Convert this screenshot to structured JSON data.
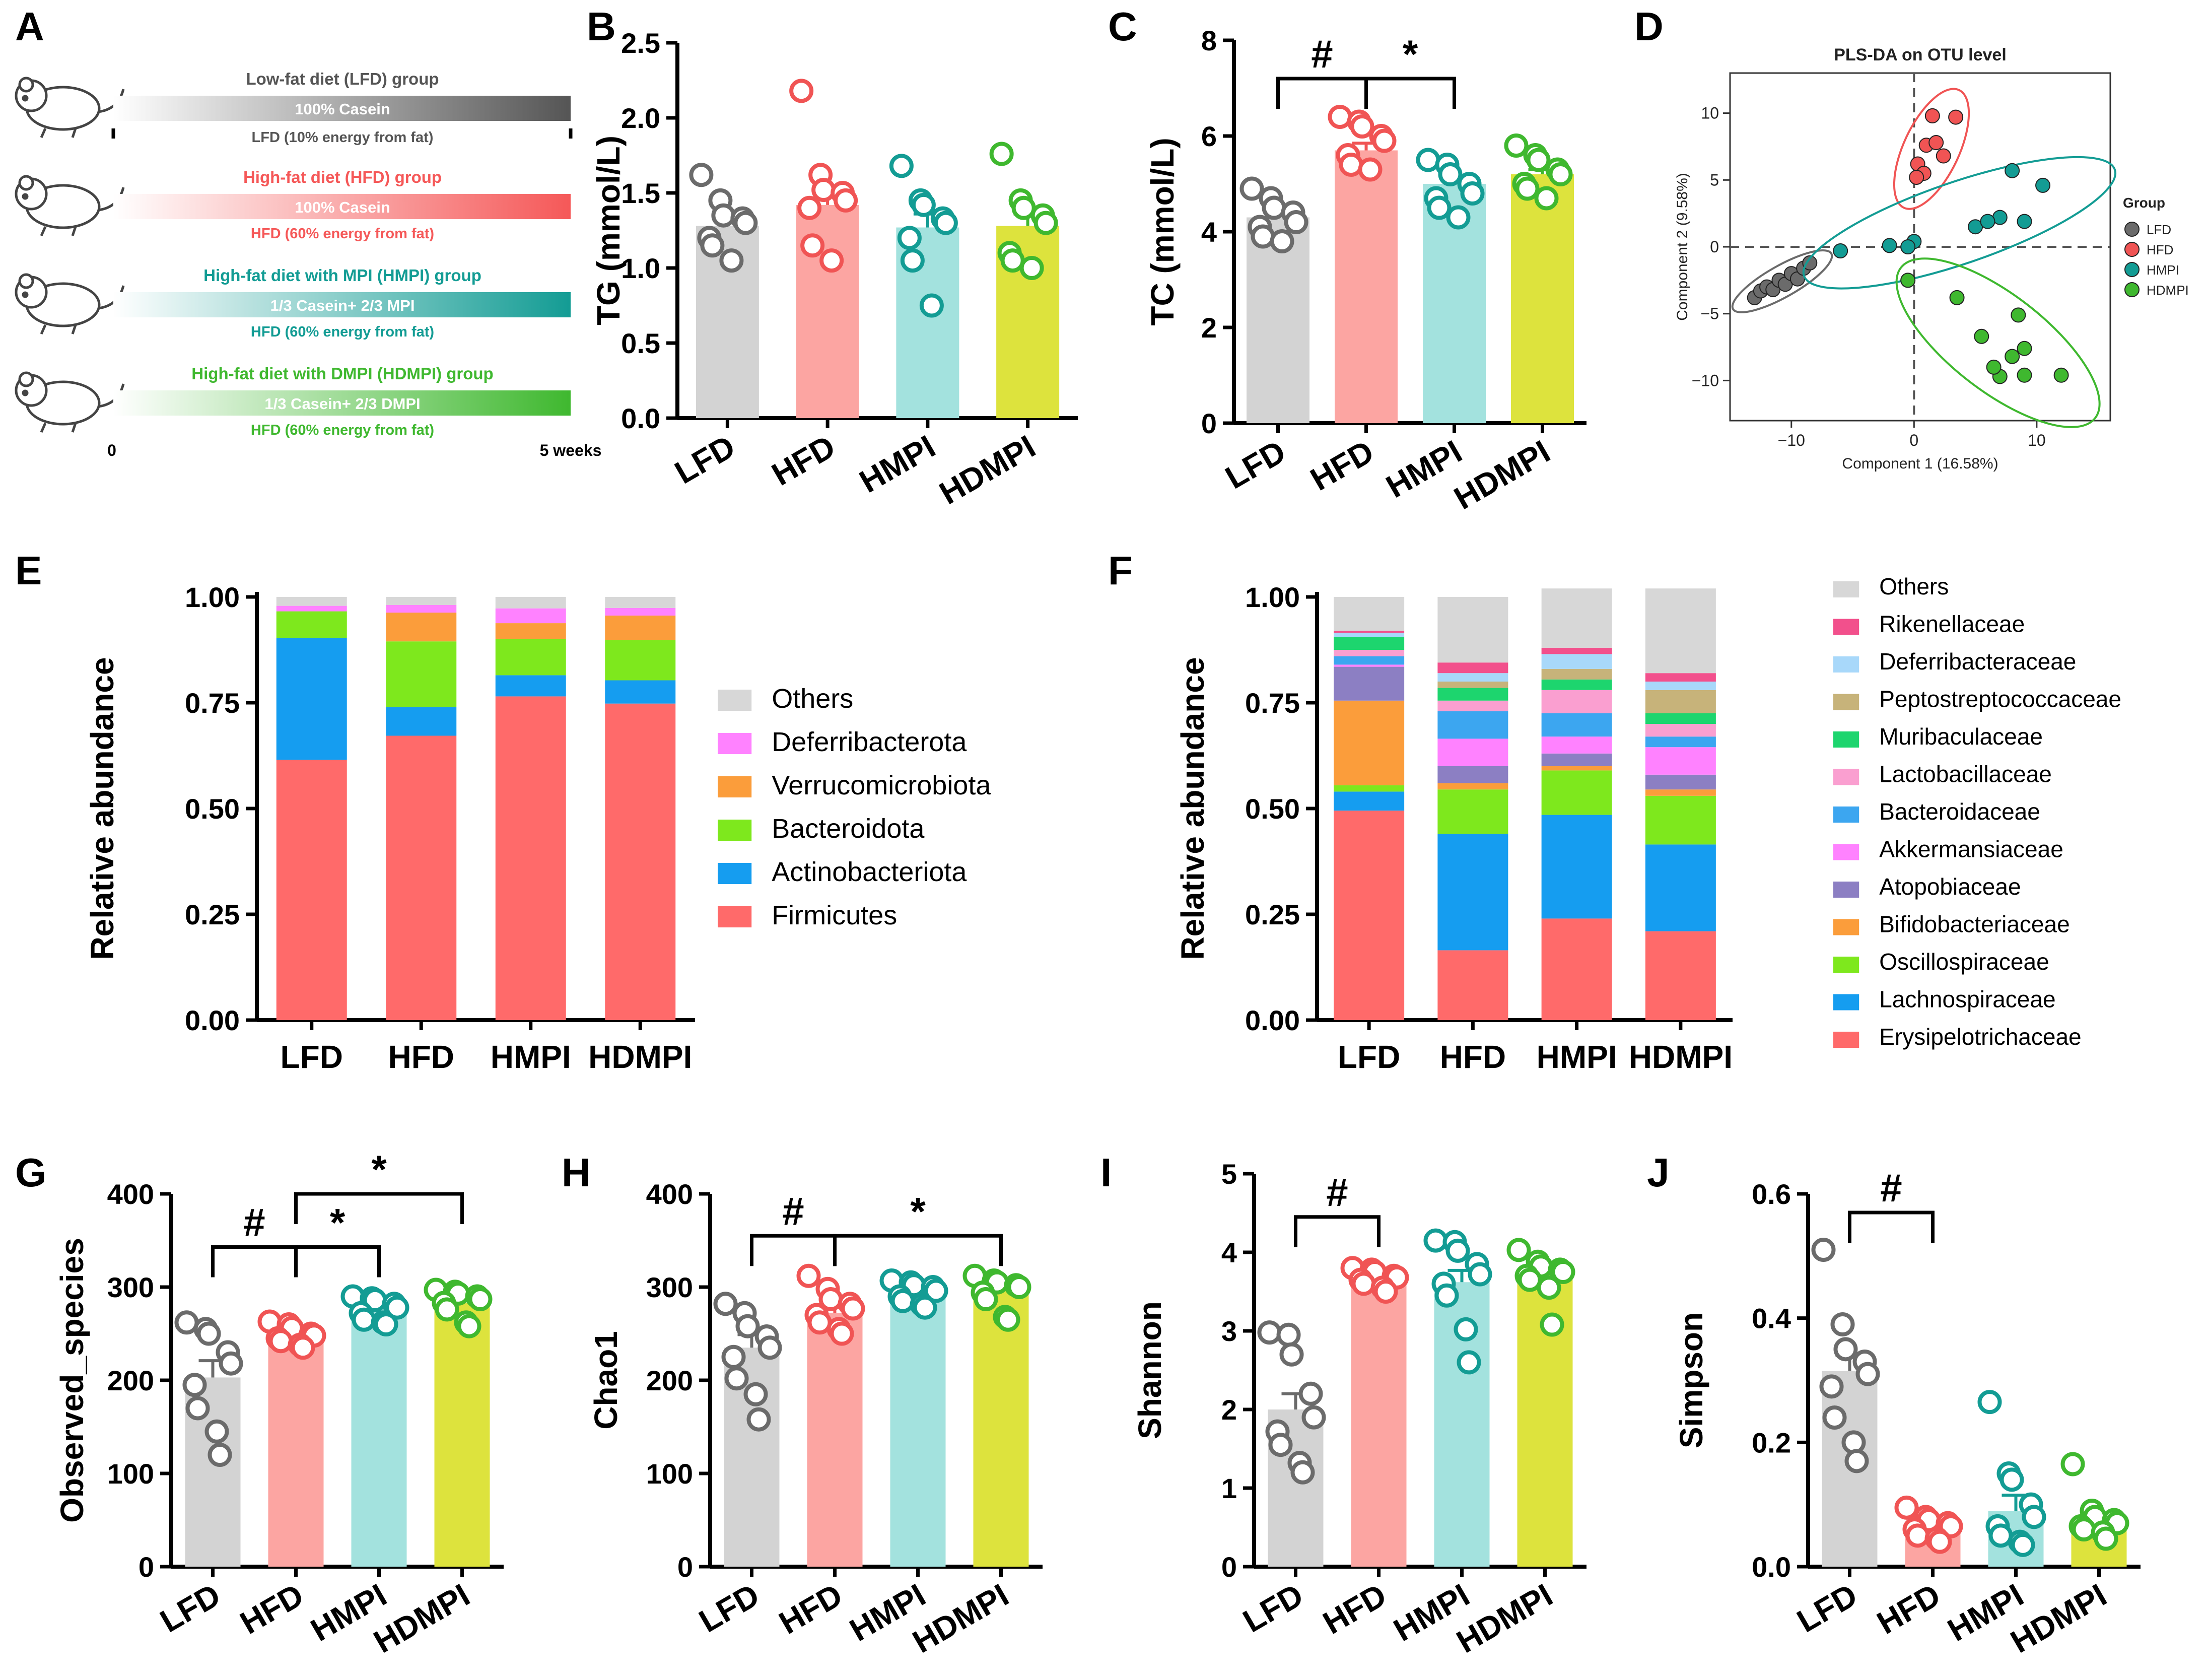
{
  "panel_letters": [
    "A",
    "B",
    "C",
    "D",
    "E",
    "F",
    "G",
    "H",
    "I",
    "J"
  ],
  "colors": {
    "LFD": "#d3d3d3",
    "HFD": "#fca5a2",
    "HMPI": "#a3e2de",
    "HDMPI": "#dde33d"
  },
  "dot_colors": {
    "LFD": "#6b6b6b",
    "HFD": "#f05454",
    "HMPI": "#139c94",
    "HDMPI": "#3fb82f"
  },
  "panelA": {
    "groups": [
      {
        "title": "Low-fat diet (LFD)  group",
        "bar": "100% Casein",
        "note": "LFD (10% energy from fat)",
        "color": "#555555"
      },
      {
        "title": "High-fat diet (HFD) group",
        "bar": "100% Casein",
        "note": "HFD (60% energy from fat)",
        "color": "#f55858"
      },
      {
        "title": "High-fat diet with MPI (HMPI) group",
        "bar": "1/3 Casein+ 2/3 MPI",
        "note": "HFD (60% energy from fat)",
        "color": "#139c94"
      },
      {
        "title": "High-fat diet with DMPI (HDMPI) group",
        "bar": "1/3 Casein+ 2/3 DMPI",
        "note": "HFD (60% energy from fat)",
        "color": "#3fb82f"
      }
    ],
    "start_label": "0",
    "end_label": "5 weeks"
  },
  "chart_data": [
    {
      "panel": "B",
      "type": "bar",
      "title": "",
      "categories": [
        "LFD",
        "HFD",
        "HMPI",
        "HDMPI"
      ],
      "ylabel": "TG (mmol/L)",
      "xlabel": "",
      "ylim": [
        0,
        2.5
      ],
      "yticks": [
        "0.0",
        "0.5",
        "1.0",
        "1.5",
        "2.0",
        "2.5"
      ],
      "values": [
        1.28,
        1.42,
        1.27,
        1.28
      ],
      "sem": [
        0.06,
        0.1,
        0.09,
        0.08
      ],
      "points": [
        [
          1.62,
          1.45,
          1.35,
          1.33,
          1.3,
          1.2,
          1.15,
          1.05
        ],
        [
          2.18,
          1.62,
          1.52,
          1.5,
          1.45,
          1.4,
          1.15,
          1.05
        ],
        [
          1.68,
          1.45,
          1.42,
          1.33,
          1.3,
          1.2,
          1.05,
          0.75
        ],
        [
          1.76,
          1.45,
          1.4,
          1.35,
          1.3,
          1.1,
          1.05,
          1.0
        ]
      ],
      "annotations": []
    },
    {
      "panel": "C",
      "type": "bar",
      "title": "",
      "categories": [
        "LFD",
        "HFD",
        "HMPI",
        "HDMPI"
      ],
      "ylabel": "TC (mmol/L)",
      "xlabel": "",
      "ylim": [
        0,
        8
      ],
      "yticks": [
        "0",
        "2",
        "4",
        "6",
        "8"
      ],
      "values": [
        4.3,
        5.7,
        5.0,
        5.2
      ],
      "sem": [
        0.12,
        0.15,
        0.14,
        0.1
      ],
      "points": [
        [
          4.9,
          4.7,
          4.5,
          4.4,
          4.2,
          4.1,
          3.9,
          3.8
        ],
        [
          6.4,
          6.3,
          6.2,
          6.0,
          5.9,
          5.6,
          5.4,
          5.3
        ],
        [
          5.5,
          5.4,
          5.2,
          5.0,
          4.8,
          4.7,
          4.5,
          4.3
        ],
        [
          5.8,
          5.6,
          5.5,
          5.3,
          5.2,
          5.0,
          4.9,
          4.7
        ]
      ],
      "annotations": [
        {
          "from": 0,
          "to": 1,
          "label": "#",
          "y": 7.2
        },
        {
          "from": 1,
          "to": 2,
          "label": "*",
          "y": 7.2
        }
      ]
    },
    {
      "panel": "D",
      "type": "scatter",
      "title": "PLS-DA on OTU level",
      "xlabel": "Component 1 (16.58%)",
      "ylabel": "Component 2 (9.58%)",
      "xlim": [
        -15,
        16
      ],
      "ylim": [
        -13,
        13
      ],
      "xticks": [
        "-10",
        "0",
        "10"
      ],
      "yticks": [
        "10",
        "5",
        "0",
        "-5",
        "-10"
      ],
      "legend_title": "Group",
      "series": [
        {
          "name": "LFD",
          "points": [
            [
              -13,
              -3.8
            ],
            [
              -12.5,
              -3.3
            ],
            [
              -12,
              -3.0
            ],
            [
              -11.5,
              -3.2
            ],
            [
              -11,
              -2.5
            ],
            [
              -10.5,
              -2.8
            ],
            [
              -10,
              -2.0
            ],
            [
              -9.5,
              -2.4
            ],
            [
              -9,
              -1.6
            ],
            [
              -8.5,
              -1.2
            ]
          ]
        },
        {
          "name": "HFD",
          "points": [
            [
              0.3,
              6.2
            ],
            [
              1.0,
              7.6
            ],
            [
              1.8,
              7.8
            ],
            [
              1.5,
              9.8
            ],
            [
              3.4,
              9.7
            ],
            [
              0.8,
              5.5
            ],
            [
              2.4,
              6.8
            ],
            [
              0.2,
              5.2
            ]
          ]
        },
        {
          "name": "HMPI",
          "points": [
            [
              -6,
              -0.3
            ],
            [
              -2,
              0.1
            ],
            [
              0,
              0.4
            ],
            [
              5,
              1.5
            ],
            [
              7,
              2.2
            ],
            [
              9,
              1.9
            ],
            [
              8,
              5.7
            ],
            [
              10.5,
              4.6
            ],
            [
              6,
              1.9
            ],
            [
              -0.5,
              0.0
            ]
          ]
        },
        {
          "name": "HDMPI",
          "points": [
            [
              -0.5,
              -2.5
            ],
            [
              3.5,
              -3.8
            ],
            [
              5.5,
              -6.7
            ],
            [
              8,
              -8.2
            ],
            [
              9,
              -9.6
            ],
            [
              7,
              -9.7
            ],
            [
              8.5,
              -5.1
            ],
            [
              12,
              -9.6
            ],
            [
              6.5,
              -9.0
            ],
            [
              9,
              -7.6
            ]
          ]
        }
      ]
    },
    {
      "panel": "E",
      "type": "stacked-bar",
      "title": "",
      "categories": [
        "LFD",
        "HFD",
        "HMPI",
        "HDMPI"
      ],
      "ylabel": "Relative abundance",
      "xlabel": "",
      "ylim": [
        0,
        1
      ],
      "yticks": [
        "0.00",
        "0.25",
        "0.50",
        "0.75",
        "1.00"
      ],
      "series": [
        {
          "name": "Firmicutes",
          "color": "#ff6a6a",
          "values": [
            0.615,
            0.672,
            0.765,
            0.748
          ]
        },
        {
          "name": "Actinobacteriota",
          "color": "#159df0",
          "values": [
            0.288,
            0.068,
            0.05,
            0.055
          ]
        },
        {
          "name": "Bacteroidota",
          "color": "#7ee81d",
          "values": [
            0.063,
            0.155,
            0.085,
            0.095
          ]
        },
        {
          "name": "Verrucomicrobiota",
          "color": "#fb9d3b",
          "values": [
            0.0,
            0.068,
            0.038,
            0.058
          ]
        },
        {
          "name": "Deferribacterota",
          "color": "#ff82ff",
          "values": [
            0.013,
            0.018,
            0.035,
            0.018
          ]
        },
        {
          "name": "Others",
          "color": "#d7d7d7",
          "values": [
            0.021,
            0.019,
            0.027,
            0.026
          ]
        }
      ]
    },
    {
      "panel": "F",
      "type": "stacked-bar",
      "title": "",
      "categories": [
        "LFD",
        "HFD",
        "HMPI",
        "HDMPI"
      ],
      "ylabel": "Relative abundance",
      "xlabel": "",
      "ylim": [
        0,
        1
      ],
      "yticks": [
        "0.00",
        "0.25",
        "0.50",
        "0.75",
        "1.00"
      ],
      "series": [
        {
          "name": "Erysipelotrichaceae",
          "color": "#ff6a6a",
          "values": [
            0.495,
            0.165,
            0.24,
            0.21
          ]
        },
        {
          "name": "Lachnospiraceae",
          "color": "#159df0",
          "values": [
            0.045,
            0.275,
            0.245,
            0.205
          ]
        },
        {
          "name": "Oscillospiraceae",
          "color": "#7ee81d",
          "values": [
            0.015,
            0.105,
            0.105,
            0.115
          ]
        },
        {
          "name": "Bifidobacteriaceae",
          "color": "#fb9d3b",
          "values": [
            0.2,
            0.015,
            0.01,
            0.015
          ]
        },
        {
          "name": "Atopobiaceae",
          "color": "#8c7fc3",
          "values": [
            0.08,
            0.04,
            0.03,
            0.035
          ]
        },
        {
          "name": "Akkermansiaceae",
          "color": "#ff82ff",
          "values": [
            0.005,
            0.065,
            0.04,
            0.065
          ]
        },
        {
          "name": "Bacteroidaceae",
          "color": "#3ca6f0",
          "values": [
            0.02,
            0.065,
            0.055,
            0.025
          ]
        },
        {
          "name": "Lactobacillaceae",
          "color": "#fa9fd0",
          "values": [
            0.015,
            0.025,
            0.055,
            0.03
          ]
        },
        {
          "name": "Muribaculaceae",
          "color": "#1dd56e",
          "values": [
            0.03,
            0.03,
            0.025,
            0.025
          ]
        },
        {
          "name": "Peptostreptococcaceae",
          "color": "#c7b37a",
          "values": [
            0.0,
            0.015,
            0.025,
            0.055
          ]
        },
        {
          "name": "Deferribacteraceae",
          "color": "#a8d8fa",
          "values": [
            0.01,
            0.02,
            0.035,
            0.02
          ]
        },
        {
          "name": "Rikenellaceae",
          "color": "#f2508c",
          "values": [
            0.005,
            0.025,
            0.015,
            0.02
          ]
        },
        {
          "name": "Others",
          "color": "#d7d7d7",
          "values": [
            0.08,
            0.155,
            0.14,
            0.2
          ]
        }
      ]
    },
    {
      "panel": "G",
      "type": "bar",
      "title": "",
      "categories": [
        "LFD",
        "HFD",
        "HMPI",
        "HDMPI"
      ],
      "ylabel": "Observed_species",
      "xlabel": "",
      "ylim": [
        0,
        400
      ],
      "yticks": [
        "0",
        "100",
        "200",
        "300",
        "400"
      ],
      "values": [
        203,
        250,
        275,
        283
      ],
      "sem": [
        18,
        5,
        5,
        5
      ],
      "points": [
        [
          262,
          255,
          250,
          230,
          218,
          195,
          170,
          145,
          120
        ],
        [
          263,
          260,
          256,
          250,
          248,
          245,
          242,
          238,
          235
        ],
        [
          290,
          288,
          286,
          282,
          278,
          272,
          265,
          262,
          260
        ],
        [
          297,
          295,
          293,
          290,
          287,
          283,
          276,
          262,
          258
        ]
      ],
      "annotations": [
        {
          "from": 0,
          "to": 1,
          "label": "#",
          "y": 343
        },
        {
          "from": 1,
          "to": 2,
          "label": "*",
          "y": 343
        },
        {
          "from": 1,
          "to": 3,
          "label": "*",
          "y": 400
        }
      ]
    },
    {
      "panel": "H",
      "type": "bar",
      "title": "",
      "categories": [
        "LFD",
        "HFD",
        "HMPI",
        "HDMPI"
      ],
      "ylabel": "Chao1",
      "xlabel": "",
      "ylim": [
        0,
        400
      ],
      "yticks": [
        "0",
        "100",
        "200",
        "300",
        "400"
      ],
      "values": [
        235,
        272,
        293,
        298
      ],
      "sem": [
        14,
        6,
        4,
        5
      ],
      "points": [
        [
          282,
          272,
          258,
          247,
          235,
          225,
          202,
          185,
          158
        ],
        [
          312,
          298,
          287,
          282,
          277,
          270,
          262,
          255,
          250
        ],
        [
          307,
          305,
          302,
          300,
          296,
          290,
          285,
          281,
          278
        ],
        [
          312,
          307,
          305,
          302,
          300,
          294,
          287,
          268,
          265
        ]
      ],
      "annotations": [
        {
          "from": 0,
          "to": 1,
          "label": "#",
          "y": 355
        },
        {
          "from": 1,
          "to": 3,
          "label": "*",
          "y": 355
        }
      ]
    },
    {
      "panel": "I",
      "type": "bar",
      "title": "",
      "categories": [
        "LFD",
        "HFD",
        "HMPI",
        "HDMPI"
      ],
      "ylabel": "Shannon",
      "xlabel": "",
      "ylim": [
        0,
        5
      ],
      "yticks": [
        "0",
        "1",
        "2",
        "3",
        "4",
        "5"
      ],
      "values": [
        2.0,
        3.67,
        3.62,
        3.72
      ],
      "sem": [
        0.2,
        0.04,
        0.15,
        0.08
      ],
      "points": [
        [
          2.98,
          2.95,
          2.7,
          2.2,
          1.9,
          1.72,
          1.55,
          1.32,
          1.2
        ],
        [
          3.8,
          3.78,
          3.75,
          3.7,
          3.68,
          3.65,
          3.6,
          3.55,
          3.5
        ],
        [
          4.15,
          4.13,
          4.02,
          3.85,
          3.72,
          3.6,
          3.45,
          3.02,
          2.6
        ],
        [
          4.03,
          3.88,
          3.82,
          3.78,
          3.75,
          3.7,
          3.65,
          3.55,
          3.08
        ]
      ],
      "annotations": [
        {
          "from": 0,
          "to": 1,
          "label": "#",
          "y": 4.45
        }
      ]
    },
    {
      "panel": "J",
      "type": "bar",
      "title": "",
      "categories": [
        "LFD",
        "HFD",
        "HMPI",
        "HDMPI"
      ],
      "ylabel": "Simpson",
      "xlabel": "",
      "ylim": [
        0,
        0.6
      ],
      "yticks": [
        "0.0",
        "0.2",
        "0.4",
        "0.6"
      ],
      "values": [
        0.315,
        0.065,
        0.09,
        0.07
      ],
      "sem": [
        0.025,
        0.007,
        0.025,
        0.013
      ],
      "points": [
        [
          0.51,
          0.39,
          0.35,
          0.33,
          0.31,
          0.29,
          0.24,
          0.2,
          0.17
        ],
        [
          0.095,
          0.08,
          0.075,
          0.07,
          0.065,
          0.06,
          0.05,
          0.045,
          0.04
        ],
        [
          0.265,
          0.15,
          0.14,
          0.1,
          0.08,
          0.065,
          0.05,
          0.04,
          0.035
        ],
        [
          0.165,
          0.09,
          0.08,
          0.075,
          0.07,
          0.065,
          0.06,
          0.055,
          0.045
        ]
      ],
      "annotations": [
        {
          "from": 0,
          "to": 1,
          "label": "#",
          "y": 0.57
        }
      ]
    }
  ]
}
